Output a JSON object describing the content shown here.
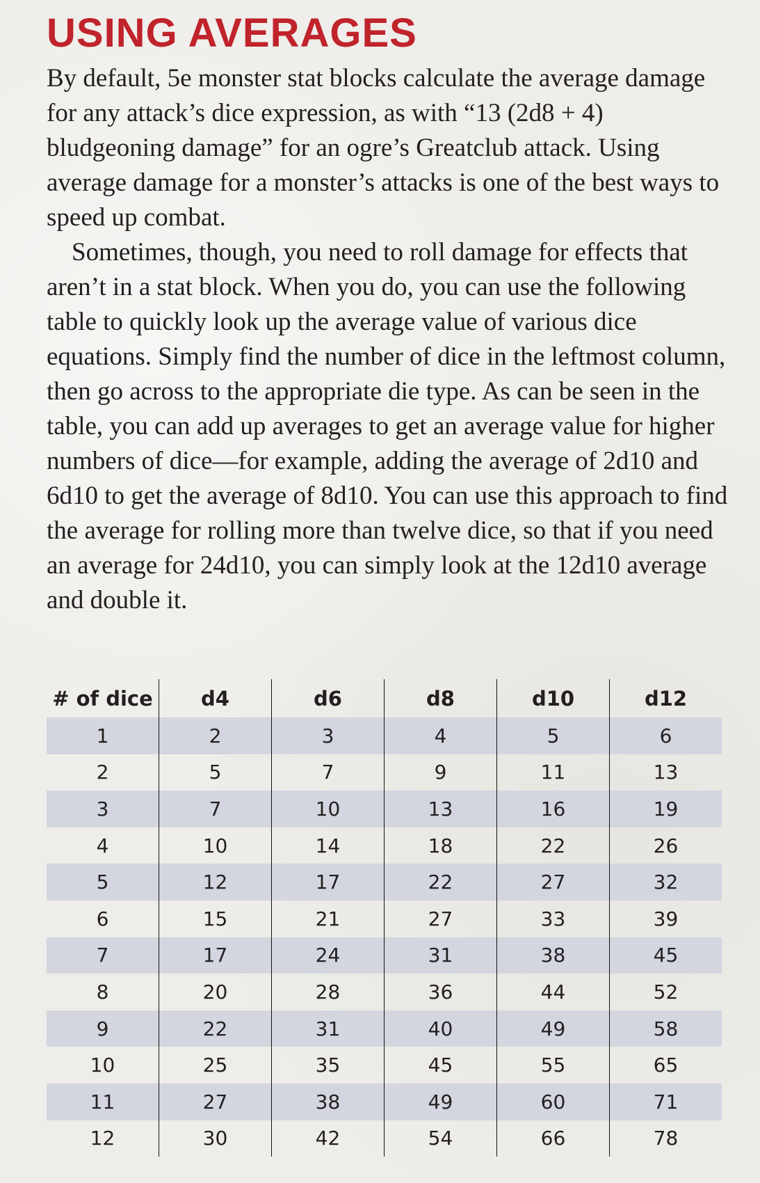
{
  "title": "USING AVERAGES",
  "paragraphs": [
    "By default, 5e monster stat blocks calculate the average damage for any attack’s dice expression, as with “13 (2d8 + 4) bludgeoning damage” for an ogre’s Greatclub attack. Using average damage for a monster’s attacks is one of the best ways to speed up combat.",
    "Sometimes, though, you need to roll damage for effects that aren’t in a stat block. When you do, you can use the following table to quickly look up the average value of various dice equations. Simply find the number of dice in the leftmost column, then go across to the appropriate die type. As can be seen in the table, you can add up averages to get an average value for higher numbers of dice—for example, adding the average of 2d10 and 6d10 to get the average of 8d10. You can use this approach to find the average for rolling more than twelve dice, so that if you need an average for 24d10, you can simply look at the 12d10 average and double it."
  ],
  "table": {
    "headers": [
      "# of dice",
      "d4",
      "d6",
      "d8",
      "d10",
      "d12"
    ],
    "rows": [
      [
        "1",
        "2",
        "3",
        "4",
        "5",
        "6"
      ],
      [
        "2",
        "5",
        "7",
        "9",
        "11",
        "13"
      ],
      [
        "3",
        "7",
        "10",
        "13",
        "16",
        "19"
      ],
      [
        "4",
        "10",
        "14",
        "18",
        "22",
        "26"
      ],
      [
        "5",
        "12",
        "17",
        "22",
        "27",
        "32"
      ],
      [
        "6",
        "15",
        "21",
        "27",
        "33",
        "39"
      ],
      [
        "7",
        "17",
        "24",
        "31",
        "38",
        "45"
      ],
      [
        "8",
        "20",
        "28",
        "36",
        "44",
        "52"
      ],
      [
        "9",
        "22",
        "31",
        "40",
        "49",
        "58"
      ],
      [
        "10",
        "25",
        "35",
        "45",
        "55",
        "65"
      ],
      [
        "11",
        "27",
        "38",
        "49",
        "60",
        "71"
      ],
      [
        "12",
        "30",
        "42",
        "54",
        "66",
        "78"
      ]
    ]
  },
  "colors": {
    "title": "#c0232b",
    "band": "#d3d6df",
    "background": "#eeede9"
  }
}
